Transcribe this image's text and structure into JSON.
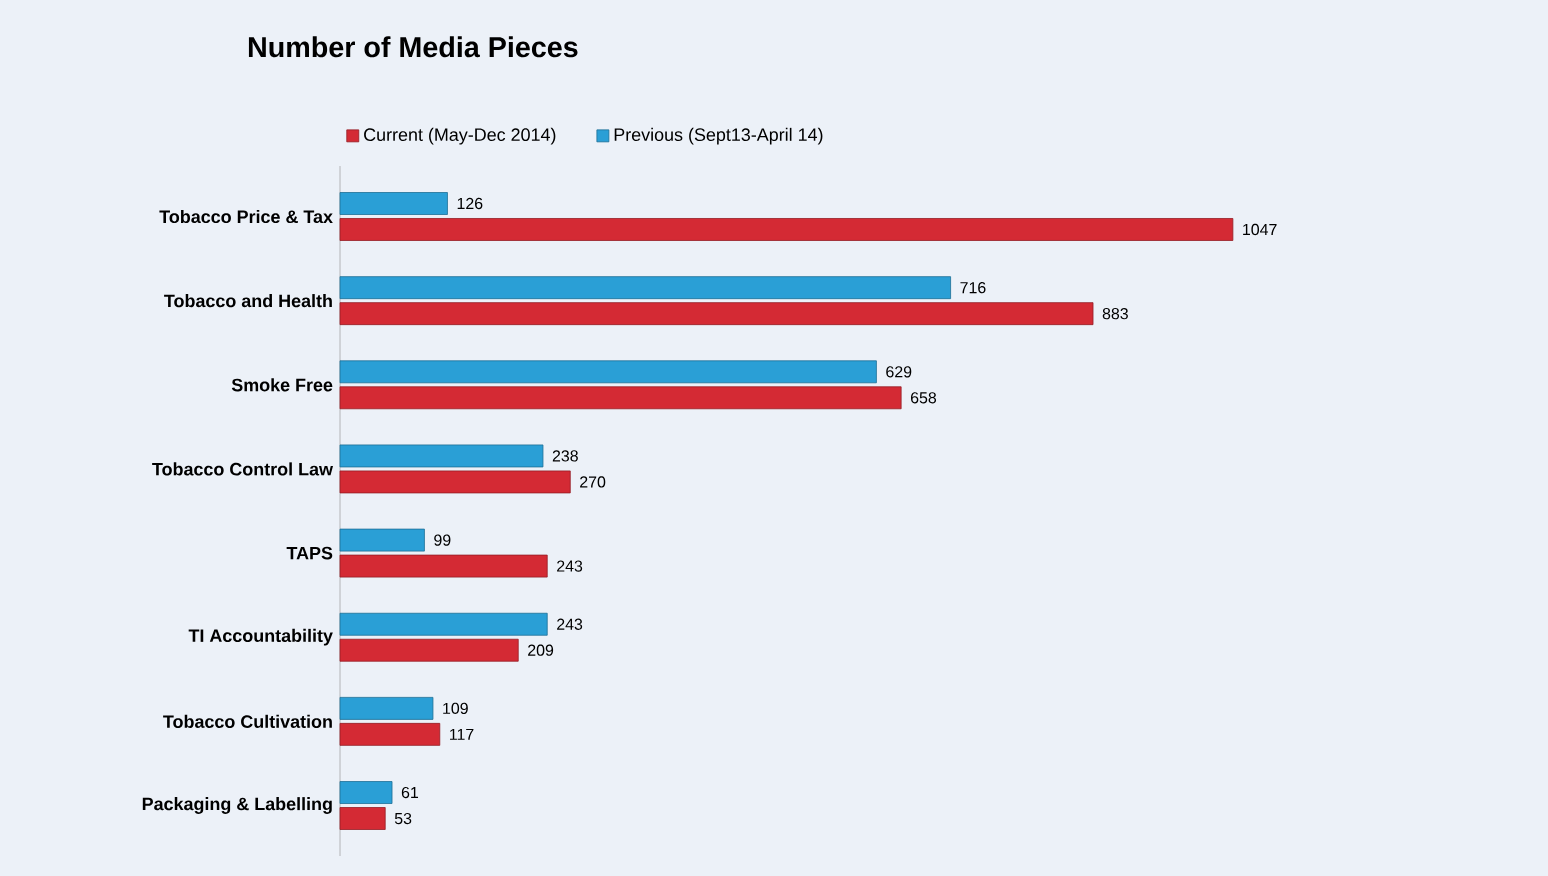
{
  "chart_data": {
    "type": "bar",
    "orientation": "horizontal",
    "title": "Number of Media Pieces",
    "categories": [
      "Tobacco Price & Tax",
      "Tobacco and Health",
      "Smoke Free",
      "Tobacco Control Law",
      "TAPS",
      "TI Accountability",
      "Tobacco Cultivation",
      "Packaging & Labelling"
    ],
    "series": [
      {
        "name": "Current (May-Dec 2014)",
        "color": "#d42a34",
        "values": [
          1047,
          883,
          658,
          270,
          243,
          209,
          117,
          53
        ]
      },
      {
        "name": "Previous (Sept13-April 14)",
        "color": "#2a9fd6",
        "values": [
          126,
          716,
          629,
          238,
          99,
          243,
          109,
          61
        ]
      }
    ],
    "data_labels": true,
    "legend": "top left",
    "grid": false
  }
}
